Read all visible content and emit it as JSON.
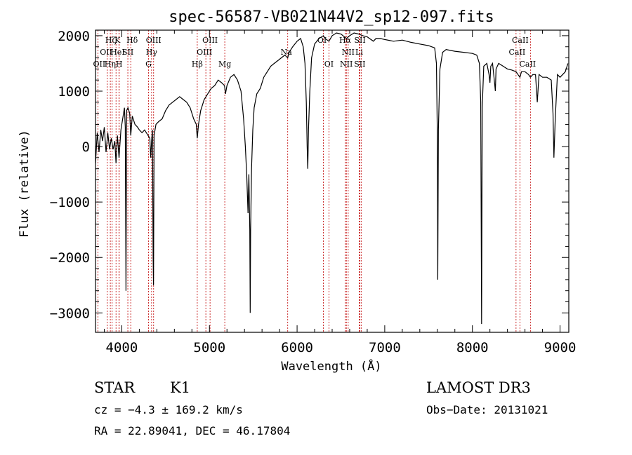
{
  "chart_data": {
    "type": "line",
    "title": "spec-56587-VB021N44V2_sp12-097.fits",
    "xlabel": "Wavelength (Å)",
    "ylabel": "Flux (relative)",
    "xlim": [
      3700,
      9100
    ],
    "ylim": [
      -3350,
      2100
    ],
    "xticks": [
      4000,
      5000,
      6000,
      7000,
      8000,
      9000
    ],
    "xtick_labels": [
      "4000",
      "5000",
      "6000",
      "7000",
      "8000",
      "9000"
    ],
    "yticks": [
      -3000,
      -2000,
      -1000,
      0,
      1000,
      2000
    ],
    "ytick_labels": [
      "−3000",
      "−2000",
      "−1000",
      "0",
      "1000",
      "2000"
    ],
    "grid": false,
    "series": [
      {
        "color": "#000000",
        "points": [
          [
            3700,
            -300
          ],
          [
            3720,
            250
          ],
          [
            3740,
            -100
          ],
          [
            3760,
            300
          ],
          [
            3780,
            100
          ],
          [
            3800,
            350
          ],
          [
            3820,
            -100
          ],
          [
            3840,
            250
          ],
          [
            3860,
            -50
          ],
          [
            3880,
            150
          ],
          [
            3900,
            -50
          ],
          [
            3920,
            100
          ],
          [
            3934,
            -300
          ],
          [
            3950,
            200
          ],
          [
            3968,
            -200
          ],
          [
            3990,
            300
          ],
          [
            4010,
            500
          ],
          [
            4030,
            700
          ],
          [
            4040,
            350
          ],
          [
            4048,
            -2600
          ],
          [
            4055,
            650
          ],
          [
            4070,
            700
          ],
          [
            4090,
            600
          ],
          [
            4102,
            200
          ],
          [
            4120,
            550
          ],
          [
            4150,
            400
          ],
          [
            4180,
            350
          ],
          [
            4200,
            300
          ],
          [
            4230,
            250
          ],
          [
            4260,
            300
          ],
          [
            4300,
            200
          ],
          [
            4320,
            150
          ],
          [
            4330,
            -200
          ],
          [
            4340,
            100
          ],
          [
            4350,
            300
          ],
          [
            4358,
            -2000
          ],
          [
            4362,
            -2500
          ],
          [
            4368,
            200
          ],
          [
            4390,
            400
          ],
          [
            4420,
            450
          ],
          [
            4460,
            500
          ],
          [
            4500,
            650
          ],
          [
            4540,
            750
          ],
          [
            4580,
            800
          ],
          [
            4620,
            850
          ],
          [
            4660,
            900
          ],
          [
            4700,
            850
          ],
          [
            4740,
            800
          ],
          [
            4780,
            700
          ],
          [
            4820,
            500
          ],
          [
            4850,
            400
          ],
          [
            4861,
            150
          ],
          [
            4875,
            400
          ],
          [
            4900,
            650
          ],
          [
            4940,
            850
          ],
          [
            4980,
            950
          ],
          [
            5020,
            1050
          ],
          [
            5060,
            1100
          ],
          [
            5100,
            1200
          ],
          [
            5140,
            1150
          ],
          [
            5172,
            1100
          ],
          [
            5183,
            950
          ],
          [
            5200,
            1100
          ],
          [
            5240,
            1250
          ],
          [
            5280,
            1300
          ],
          [
            5320,
            1200
          ],
          [
            5360,
            1000
          ],
          [
            5390,
            500
          ],
          [
            5410,
            0
          ],
          [
            5425,
            -500
          ],
          [
            5440,
            -1200
          ],
          [
            5450,
            -500
          ],
          [
            5460,
            -1500
          ],
          [
            5465,
            -3000
          ],
          [
            5470,
            -1500
          ],
          [
            5480,
            -400
          ],
          [
            5495,
            300
          ],
          [
            5510,
            700
          ],
          [
            5540,
            950
          ],
          [
            5580,
            1050
          ],
          [
            5620,
            1250
          ],
          [
            5660,
            1350
          ],
          [
            5700,
            1450
          ],
          [
            5740,
            1500
          ],
          [
            5780,
            1550
          ],
          [
            5820,
            1600
          ],
          [
            5860,
            1650
          ],
          [
            5893,
            1600
          ],
          [
            5910,
            1700
          ],
          [
            5950,
            1800
          ],
          [
            6000,
            1900
          ],
          [
            6040,
            1950
          ],
          [
            6070,
            1800
          ],
          [
            6090,
            1500
          ],
          [
            6105,
            800
          ],
          [
            6115,
            0
          ],
          [
            6122,
            -400
          ],
          [
            6130,
            300
          ],
          [
            6145,
            1000
          ],
          [
            6165,
            1600
          ],
          [
            6200,
            1850
          ],
          [
            6250,
            1950
          ],
          [
            6300,
            2000
          ],
          [
            6320,
            1950
          ],
          [
            6363,
            1900
          ],
          [
            6400,
            2000
          ],
          [
            6450,
            2050
          ],
          [
            6500,
            2030
          ],
          [
            6563,
            1950
          ],
          [
            6600,
            2000
          ],
          [
            6650,
            2050
          ],
          [
            6700,
            2030
          ],
          [
            6750,
            2000
          ],
          [
            6800,
            1980
          ],
          [
            6870,
            1900
          ],
          [
            6900,
            1950
          ],
          [
            6950,
            1950
          ],
          [
            7000,
            1930
          ],
          [
            7100,
            1900
          ],
          [
            7200,
            1920
          ],
          [
            7300,
            1880
          ],
          [
            7400,
            1850
          ],
          [
            7500,
            1820
          ],
          [
            7570,
            1780
          ],
          [
            7590,
            1500
          ],
          [
            7600,
            200
          ],
          [
            7605,
            -2400
          ],
          [
            7612,
            300
          ],
          [
            7630,
            1400
          ],
          [
            7660,
            1700
          ],
          [
            7700,
            1750
          ],
          [
            7800,
            1720
          ],
          [
            7900,
            1700
          ],
          [
            8000,
            1680
          ],
          [
            8050,
            1650
          ],
          [
            8080,
            1500
          ],
          [
            8095,
            800
          ],
          [
            8105,
            -3200
          ],
          [
            8112,
            700
          ],
          [
            8130,
            1450
          ],
          [
            8165,
            1500
          ],
          [
            8190,
            1300
          ],
          [
            8200,
            1150
          ],
          [
            8210,
            1450
          ],
          [
            8230,
            1500
          ],
          [
            8250,
            1200
          ],
          [
            8262,
            1000
          ],
          [
            8270,
            1400
          ],
          [
            8300,
            1500
          ],
          [
            8350,
            1450
          ],
          [
            8400,
            1400
          ],
          [
            8450,
            1380
          ],
          [
            8498,
            1350
          ],
          [
            8520,
            1300
          ],
          [
            8542,
            1250
          ],
          [
            8560,
            1350
          ],
          [
            8600,
            1350
          ],
          [
            8640,
            1300
          ],
          [
            8662,
            1250
          ],
          [
            8690,
            1300
          ],
          [
            8720,
            1300
          ],
          [
            8740,
            800
          ],
          [
            8760,
            1300
          ],
          [
            8800,
            1250
          ],
          [
            8850,
            1250
          ],
          [
            8900,
            1200
          ],
          [
            8920,
            600
          ],
          [
            8930,
            -200
          ],
          [
            8945,
            500
          ],
          [
            8970,
            1300
          ],
          [
            9000,
            1250
          ],
          [
            9030,
            1300
          ],
          [
            9060,
            1350
          ],
          [
            9090,
            1500
          ]
        ]
      }
    ],
    "spectral_lines": [
      {
        "wavelength": 3890,
        "label": "Hζ",
        "row": 0,
        "dx": -2
      },
      {
        "wavelength": 3934,
        "label": "K",
        "row": 0,
        "dx": 2
      },
      {
        "wavelength": 4102,
        "label": "Hδ",
        "row": 0,
        "dx": 2
      },
      {
        "wavelength": 4363,
        "label": "OIII",
        "row": 0,
        "dx": 0
      },
      {
        "wavelength": 5007,
        "label": "OIII",
        "row": 0,
        "dx": 0
      },
      {
        "wavelength": 6300,
        "label": "OI",
        "row": 0,
        "dx": -2
      },
      {
        "wavelength": 6548,
        "label": "Hα",
        "row": 0,
        "dx": 0
      },
      {
        "wavelength": 6717,
        "label": "SII",
        "row": 0,
        "dx": 0
      },
      {
        "wavelength": 8498,
        "label": "CaII",
        "row": 0,
        "dx": 6
      },
      {
        "wavelength": 3869,
        "label": "OII",
        "row": 1,
        "dx": -6
      },
      {
        "wavelength": 3968,
        "label": "HeI",
        "row": 1,
        "dx": -2
      },
      {
        "wavelength": 4069,
        "label": "SII",
        "row": 1,
        "dx": 0
      },
      {
        "wavelength": 4340,
        "label": "Hγ",
        "row": 1,
        "dx": 0
      },
      {
        "wavelength": 4959,
        "label": "OIII",
        "row": 1,
        "dx": -2
      },
      {
        "wavelength": 5893,
        "label": "Na",
        "row": 1,
        "dx": -2
      },
      {
        "wavelength": 6583,
        "label": "NII",
        "row": 1,
        "dx": 0
      },
      {
        "wavelength": 6708,
        "label": "Li",
        "row": 1,
        "dx": 0
      },
      {
        "wavelength": 8542,
        "label": "CaII",
        "row": 1,
        "dx": -4
      },
      {
        "wavelength": 3727,
        "label": "OII",
        "row": 2,
        "dx": 2
      },
      {
        "wavelength": 3835,
        "label": "Hη",
        "row": 2,
        "dx": 4
      },
      {
        "wavelength": 3970,
        "label": "H",
        "row": 2,
        "dx": 0
      },
      {
        "wavelength": 4305,
        "label": "G",
        "row": 2,
        "dx": 0
      },
      {
        "wavelength": 4861,
        "label": "Hβ",
        "row": 2,
        "dx": 0
      },
      {
        "wavelength": 5175,
        "label": "Mg",
        "row": 2,
        "dx": 0
      },
      {
        "wavelength": 6363,
        "label": "OI",
        "row": 2,
        "dx": 0
      },
      {
        "wavelength": 6562,
        "label": "NII",
        "row": 2,
        "dx": 0
      },
      {
        "wavelength": 6731,
        "label": "SII",
        "row": 2,
        "dx": -2
      },
      {
        "wavelength": 8662,
        "label": "CaII",
        "row": 2,
        "dx": -4
      }
    ],
    "line_color": "#c00000"
  },
  "info": {
    "class_label": "STAR",
    "subclass": "K1",
    "survey": "LAMOST DR3",
    "cz": "cz = −4.3 ± 169.2 km/s",
    "obs_date": "Obs−Date: 20131021",
    "coords": "RA =  22.89041, DEC =  46.17804"
  }
}
